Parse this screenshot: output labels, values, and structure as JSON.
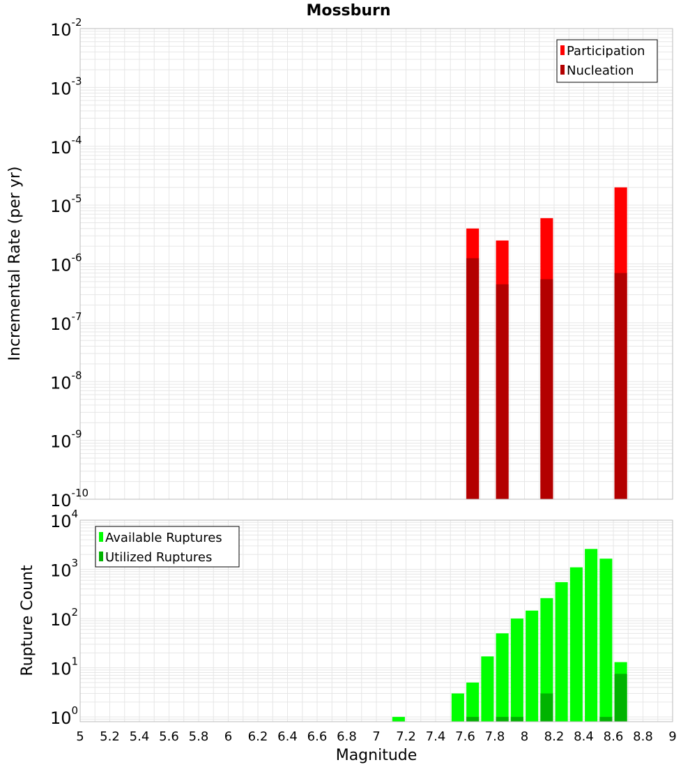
{
  "title": "Mossburn",
  "xlabel": "Magnitude",
  "colors": {
    "participation": "#ff0000",
    "nucleation": "#b30000",
    "available": "#00ff00",
    "utilized": "#00b300",
    "grid": "#e6e6e6",
    "frame": "#bbbbbb"
  },
  "chart_data": [
    {
      "type": "bar",
      "ylabel": "Incremental Rate (per yr)",
      "ylim": [
        1e-10,
        0.01
      ],
      "yscale": "log",
      "xlim": [
        5,
        9
      ],
      "grid": true,
      "legend_position": "top-right",
      "series": [
        {
          "name": "Participation",
          "x": [
            7.65,
            7.85,
            8.15,
            8.65
          ],
          "values": [
            4e-06,
            2.5e-06,
            6e-06,
            2e-05
          ]
        },
        {
          "name": "Nucleation",
          "x": [
            7.65,
            7.85,
            8.15,
            8.65
          ],
          "values": [
            1.25e-06,
            4.5e-07,
            5.5e-07,
            7e-07
          ]
        }
      ]
    },
    {
      "type": "bar",
      "ylabel": "Rupture Count",
      "ylim": [
        0.8,
        10000
      ],
      "yscale": "log",
      "xlim": [
        5,
        9
      ],
      "grid": true,
      "legend_position": "top-left",
      "series": [
        {
          "name": "Available Ruptures",
          "x": [
            7.15,
            7.55,
            7.65,
            7.75,
            7.85,
            7.95,
            8.05,
            8.15,
            8.25,
            8.35,
            8.45,
            8.55,
            8.65
          ],
          "values": [
            1,
            3,
            5,
            17,
            50,
            100,
            145,
            260,
            550,
            1100,
            2600,
            1650,
            13
          ]
        },
        {
          "name": "Utilized Ruptures",
          "x": [
            7.65,
            7.85,
            7.95,
            8.15,
            8.55,
            8.65
          ],
          "values": [
            1,
            1,
            1,
            3,
            1,
            7.5
          ]
        }
      ]
    }
  ]
}
